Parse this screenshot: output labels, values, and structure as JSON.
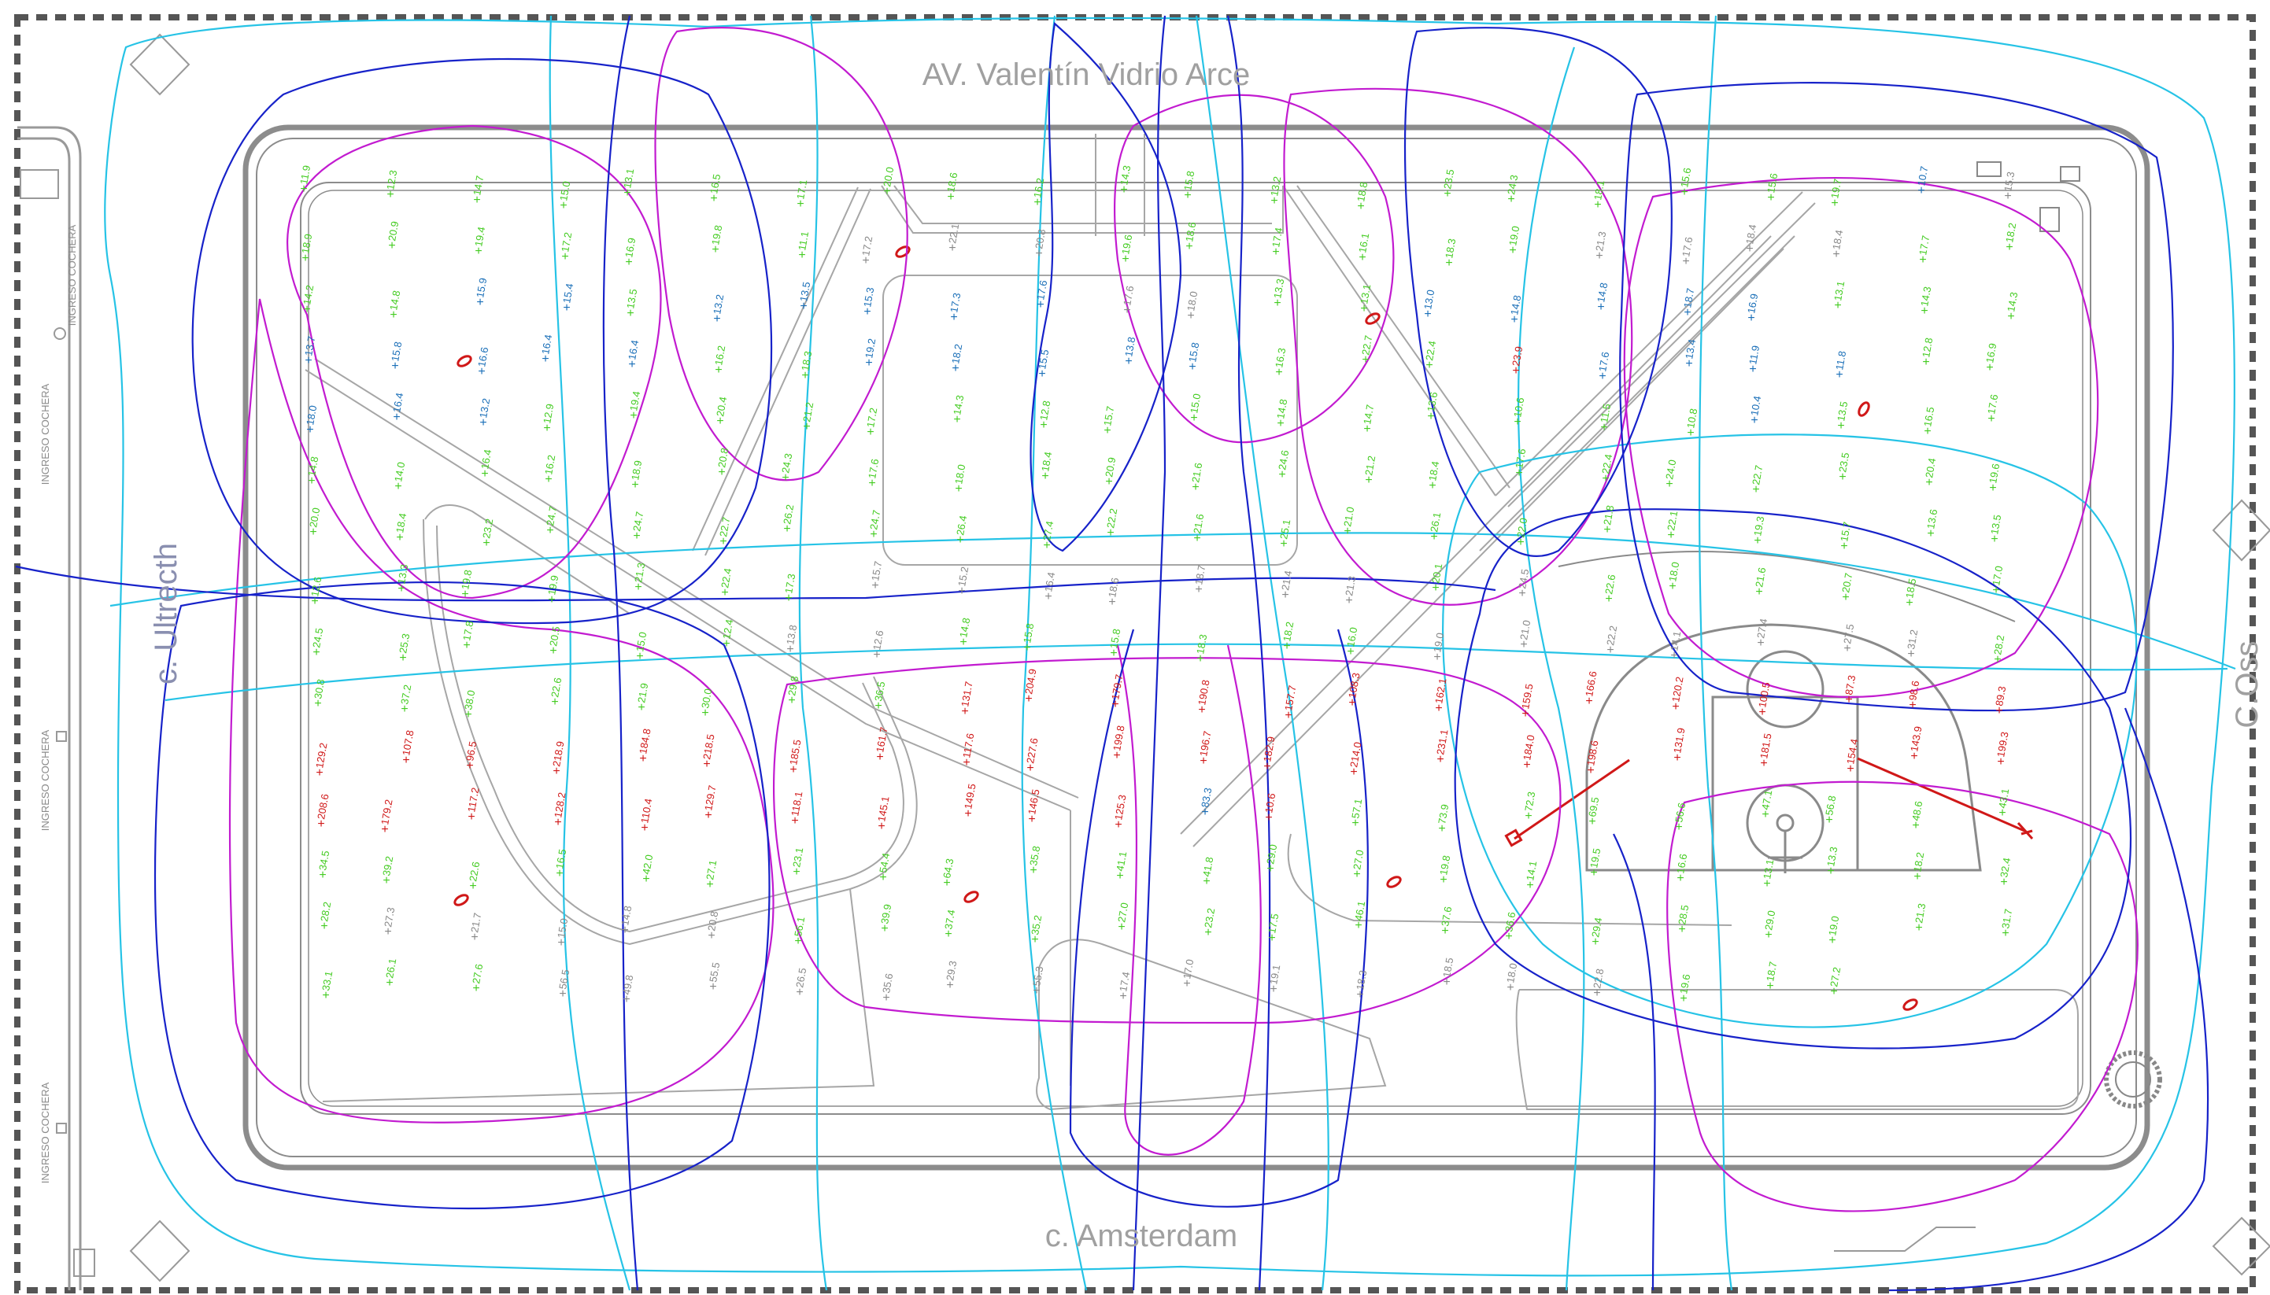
{
  "streets": {
    "north": "AV. Valentín Vidrio Arce",
    "south": "c. Amsterdam",
    "west": "c. Ultrecth",
    "east": "C.Oss"
  },
  "side_labels": [
    "INGRESO COCHERA",
    "INGRESO COCHERA",
    "INGRESO COCHERA",
    "INGRESO COCHERA"
  ],
  "colors": {
    "frame": "#555555",
    "plaza_outline": "#8c8c8c",
    "contour_magenta": "#c21bd0",
    "contour_cyan": "#26c3e6",
    "contour_blue": "#1722c9",
    "reading_green": "#44cc22",
    "reading_gray": "#888888",
    "reading_blue": "#1a6fb8",
    "reading_red": "#d01818"
  },
  "readings": [
    {
      "v": "11.9",
      "c": "green"
    },
    {
      "v": "12.3",
      "c": "green"
    },
    {
      "v": "14.7",
      "c": "green"
    },
    {
      "v": "15.0",
      "c": "green"
    },
    {
      "v": "13.1",
      "c": "green"
    },
    {
      "v": "16.5",
      "c": "green"
    },
    {
      "v": "17.1",
      "c": "green"
    },
    {
      "v": "20.0",
      "c": "green"
    },
    {
      "v": "18.6",
      "c": "green"
    },
    {
      "v": "16.2",
      "c": "green"
    },
    {
      "v": "14.3",
      "c": "green"
    },
    {
      "v": "15.8",
      "c": "green"
    },
    {
      "v": "13.2",
      "c": "green"
    },
    {
      "v": "18.8",
      "c": "green"
    },
    {
      "v": "23.5",
      "c": "green"
    },
    {
      "v": "24.3",
      "c": "green"
    },
    {
      "v": "18.1",
      "c": "green"
    },
    {
      "v": "15.6",
      "c": "green"
    },
    {
      "v": "15.6",
      "c": "green"
    },
    {
      "v": "19.7",
      "c": "green"
    },
    {
      "v": "10.7",
      "c": "blue"
    },
    {
      "v": "15.3",
      "c": "gray"
    },
    {
      "v": "18.9",
      "c": "green"
    },
    {
      "v": "20.9",
      "c": "green"
    },
    {
      "v": "19.4",
      "c": "green"
    },
    {
      "v": "17.2",
      "c": "green"
    },
    {
      "v": "16.9",
      "c": "green"
    },
    {
      "v": "19.8",
      "c": "green"
    },
    {
      "v": "11.1",
      "c": "green"
    },
    {
      "v": "17.2",
      "c": "gray"
    },
    {
      "v": "22.1",
      "c": "gray"
    },
    {
      "v": "20.8",
      "c": "gray"
    },
    {
      "v": "19.6",
      "c": "green"
    },
    {
      "v": "18.6",
      "c": "green"
    },
    {
      "v": "17.4",
      "c": "green"
    },
    {
      "v": "16.1",
      "c": "green"
    },
    {
      "v": "18.3",
      "c": "green"
    },
    {
      "v": "19.0",
      "c": "green"
    },
    {
      "v": "21.3",
      "c": "gray"
    },
    {
      "v": "17.6",
      "c": "gray"
    },
    {
      "v": "18.4",
      "c": "gray"
    },
    {
      "v": "18.4",
      "c": "gray"
    },
    {
      "v": "17.7",
      "c": "green"
    },
    {
      "v": "18.2",
      "c": "green"
    },
    {
      "v": "14.2",
      "c": "green"
    },
    {
      "v": "14.8",
      "c": "green"
    },
    {
      "v": "15.9",
      "c": "blue"
    },
    {
      "v": "15.4",
      "c": "blue"
    },
    {
      "v": "13.5",
      "c": "green"
    },
    {
      "v": "13.2",
      "c": "blue"
    },
    {
      "v": "13.5",
      "c": "blue"
    },
    {
      "v": "15.3",
      "c": "blue"
    },
    {
      "v": "17.3",
      "c": "blue"
    },
    {
      "v": "17.6",
      "c": "blue"
    },
    {
      "v": "17.6",
      "c": "gray"
    },
    {
      "v": "18.0",
      "c": "gray"
    },
    {
      "v": "13.3",
      "c": "green"
    },
    {
      "v": "13.1",
      "c": "green"
    },
    {
      "v": "13.0",
      "c": "blue"
    },
    {
      "v": "14.8",
      "c": "blue"
    },
    {
      "v": "14.8",
      "c": "blue"
    },
    {
      "v": "18.7",
      "c": "blue"
    },
    {
      "v": "16.9",
      "c": "blue"
    },
    {
      "v": "13.1",
      "c": "green"
    },
    {
      "v": "14.3",
      "c": "green"
    },
    {
      "v": "14.3",
      "c": "green"
    },
    {
      "v": "13.7",
      "c": "blue"
    },
    {
      "v": "15.8",
      "c": "blue"
    },
    {
      "v": "16.6",
      "c": "blue"
    },
    {
      "v": "16.4",
      "c": "blue"
    },
    {
      "v": "16.4",
      "c": "blue"
    },
    {
      "v": "16.2",
      "c": "green"
    },
    {
      "v": "18.3",
      "c": "green"
    },
    {
      "v": "19.2",
      "c": "blue"
    },
    {
      "v": "18.2",
      "c": "blue"
    },
    {
      "v": "15.5",
      "c": "blue"
    },
    {
      "v": "13.8",
      "c": "blue"
    },
    {
      "v": "15.8",
      "c": "blue"
    },
    {
      "v": "16.3",
      "c": "green"
    },
    {
      "v": "22.7",
      "c": "green"
    },
    {
      "v": "22.4",
      "c": "green"
    },
    {
      "v": "23.9",
      "c": "red"
    },
    {
      "v": "17.6",
      "c": "blue"
    },
    {
      "v": "13.4",
      "c": "blue"
    },
    {
      "v": "11.9",
      "c": "blue"
    },
    {
      "v": "11.8",
      "c": "blue"
    },
    {
      "v": "12.8",
      "c": "green"
    },
    {
      "v": "16.9",
      "c": "green"
    },
    {
      "v": "18.0",
      "c": "blue"
    },
    {
      "v": "16.4",
      "c": "blue"
    },
    {
      "v": "13.2",
      "c": "blue"
    },
    {
      "v": "12.9",
      "c": "green"
    },
    {
      "v": "19.4",
      "c": "green"
    },
    {
      "v": "20.4",
      "c": "green"
    },
    {
      "v": "21.2",
      "c": "green"
    },
    {
      "v": "17.2",
      "c": "green"
    },
    {
      "v": "14.3",
      "c": "green"
    },
    {
      "v": "12.8",
      "c": "green"
    },
    {
      "v": "15.7",
      "c": "green"
    },
    {
      "v": "15.0",
      "c": "green"
    },
    {
      "v": "14.8",
      "c": "green"
    },
    {
      "v": "14.7",
      "c": "green"
    },
    {
      "v": "13.6",
      "c": "green"
    },
    {
      "v": "10.6",
      "c": "green"
    },
    {
      "v": "11.5",
      "c": "green"
    },
    {
      "v": "10.8",
      "c": "green"
    },
    {
      "v": "10.4",
      "c": "blue"
    },
    {
      "v": "13.5",
      "c": "green"
    },
    {
      "v": "16.5",
      "c": "green"
    },
    {
      "v": "17.6",
      "c": "green"
    },
    {
      "v": "14.8",
      "c": "green"
    },
    {
      "v": "14.0",
      "c": "green"
    },
    {
      "v": "16.4",
      "c": "green"
    },
    {
      "v": "16.2",
      "c": "green"
    },
    {
      "v": "18.9",
      "c": "green"
    },
    {
      "v": "20.8",
      "c": "green"
    },
    {
      "v": "24.3",
      "c": "green"
    },
    {
      "v": "17.6",
      "c": "green"
    },
    {
      "v": "18.0",
      "c": "green"
    },
    {
      "v": "18.4",
      "c": "green"
    },
    {
      "v": "20.9",
      "c": "green"
    },
    {
      "v": "21.6",
      "c": "green"
    },
    {
      "v": "24.6",
      "c": "green"
    },
    {
      "v": "21.2",
      "c": "green"
    },
    {
      "v": "18.4",
      "c": "green"
    },
    {
      "v": "17.6",
      "c": "green"
    },
    {
      "v": "22.4",
      "c": "green"
    },
    {
      "v": "24.0",
      "c": "green"
    },
    {
      "v": "22.7",
      "c": "green"
    },
    {
      "v": "23.5",
      "c": "green"
    },
    {
      "v": "20.4",
      "c": "green"
    },
    {
      "v": "19.6",
      "c": "green"
    },
    {
      "v": "20.0",
      "c": "green"
    },
    {
      "v": "18.4",
      "c": "green"
    },
    {
      "v": "23.2",
      "c": "green"
    },
    {
      "v": "24.7",
      "c": "green"
    },
    {
      "v": "24.7",
      "c": "green"
    },
    {
      "v": "22.7",
      "c": "green"
    },
    {
      "v": "26.2",
      "c": "green"
    },
    {
      "v": "24.7",
      "c": "green"
    },
    {
      "v": "26.4",
      "c": "green"
    },
    {
      "v": "27.4",
      "c": "green"
    },
    {
      "v": "22.2",
      "c": "green"
    },
    {
      "v": "21.6",
      "c": "green"
    },
    {
      "v": "25.1",
      "c": "green"
    },
    {
      "v": "21.0",
      "c": "green"
    },
    {
      "v": "26.1",
      "c": "green"
    },
    {
      "v": "22.0",
      "c": "green"
    },
    {
      "v": "21.8",
      "c": "green"
    },
    {
      "v": "22.1",
      "c": "green"
    },
    {
      "v": "19.3",
      "c": "green"
    },
    {
      "v": "15.7",
      "c": "green"
    },
    {
      "v": "13.6",
      "c": "green"
    },
    {
      "v": "13.5",
      "c": "green"
    },
    {
      "v": "12.6",
      "c": "green"
    },
    {
      "v": "13.3",
      "c": "green"
    },
    {
      "v": "19.8",
      "c": "green"
    },
    {
      "v": "19.9",
      "c": "green"
    },
    {
      "v": "21.3",
      "c": "green"
    },
    {
      "v": "22.4",
      "c": "green"
    },
    {
      "v": "17.3",
      "c": "green"
    },
    {
      "v": "15.7",
      "c": "gray"
    },
    {
      "v": "15.2",
      "c": "gray"
    },
    {
      "v": "16.4",
      "c": "gray"
    },
    {
      "v": "18.6",
      "c": "gray"
    },
    {
      "v": "18.7",
      "c": "gray"
    },
    {
      "v": "21.4",
      "c": "gray"
    },
    {
      "v": "21.3",
      "c": "gray"
    },
    {
      "v": "20.1",
      "c": "green"
    },
    {
      "v": "24.5",
      "c": "gray"
    },
    {
      "v": "22.6",
      "c": "green"
    },
    {
      "v": "18.0",
      "c": "green"
    },
    {
      "v": "21.6",
      "c": "green"
    },
    {
      "v": "20.7",
      "c": "green"
    },
    {
      "v": "18.5",
      "c": "green"
    },
    {
      "v": "17.0",
      "c": "green"
    },
    {
      "v": "24.5",
      "c": "green"
    },
    {
      "v": "25.3",
      "c": "green"
    },
    {
      "v": "17.8",
      "c": "green"
    },
    {
      "v": "20.5",
      "c": "green"
    },
    {
      "v": "15.0",
      "c": "green"
    },
    {
      "v": "12.4",
      "c": "green"
    },
    {
      "v": "13.8",
      "c": "gray"
    },
    {
      "v": "12.6",
      "c": "gray"
    },
    {
      "v": "14.8",
      "c": "green"
    },
    {
      "v": "15.8",
      "c": "green"
    },
    {
      "v": "15.8",
      "c": "green"
    },
    {
      "v": "18.3",
      "c": "green"
    },
    {
      "v": "18.2",
      "c": "green"
    },
    {
      "v": "16.0",
      "c": "green"
    },
    {
      "v": "19.0",
      "c": "gray"
    },
    {
      "v": "21.0",
      "c": "gray"
    },
    {
      "v": "22.2",
      "c": "gray"
    },
    {
      "v": "14.1",
      "c": "gray"
    },
    {
      "v": "27.4",
      "c": "gray"
    },
    {
      "v": "27.5",
      "c": "gray"
    },
    {
      "v": "31.2",
      "c": "gray"
    },
    {
      "v": "28.2",
      "c": "green"
    },
    {
      "v": "30.8",
      "c": "green"
    },
    {
      "v": "37.2",
      "c": "green"
    },
    {
      "v": "38.0",
      "c": "green"
    },
    {
      "v": "22.6",
      "c": "green"
    },
    {
      "v": "21.9",
      "c": "green"
    },
    {
      "v": "30.0",
      "c": "green"
    },
    {
      "v": "29.8",
      "c": "green"
    },
    {
      "v": "36.5",
      "c": "green"
    },
    {
      "v": "131.7",
      "c": "red"
    },
    {
      "v": "204.9",
      "c": "red"
    },
    {
      "v": "179.7",
      "c": "red"
    },
    {
      "v": "190.8",
      "c": "red"
    },
    {
      "v": "157.7",
      "c": "red"
    },
    {
      "v": "108.3",
      "c": "red"
    },
    {
      "v": "162.1",
      "c": "red"
    },
    {
      "v": "159.5",
      "c": "red"
    },
    {
      "v": "166.6",
      "c": "red"
    },
    {
      "v": "120.2",
      "c": "red"
    },
    {
      "v": "100.5",
      "c": "red"
    },
    {
      "v": "87.3",
      "c": "red"
    },
    {
      "v": "98.6",
      "c": "red"
    },
    {
      "v": "89.3",
      "c": "red"
    },
    {
      "v": "129.2",
      "c": "red"
    },
    {
      "v": "107.8",
      "c": "red"
    },
    {
      "v": "96.5",
      "c": "red"
    },
    {
      "v": "218.9",
      "c": "red"
    },
    {
      "v": "184.8",
      "c": "red"
    },
    {
      "v": "218.5",
      "c": "red"
    },
    {
      "v": "185.5",
      "c": "red"
    },
    {
      "v": "161.7",
      "c": "red"
    },
    {
      "v": "117.6",
      "c": "red"
    },
    {
      "v": "227.6",
      "c": "red"
    },
    {
      "v": "199.8",
      "c": "red"
    },
    {
      "v": "196.7",
      "c": "red"
    },
    {
      "v": "182.9",
      "c": "red"
    },
    {
      "v": "214.0",
      "c": "red"
    },
    {
      "v": "231.1",
      "c": "red"
    },
    {
      "v": "184.0",
      "c": "red"
    },
    {
      "v": "198.6",
      "c": "red"
    },
    {
      "v": "131.9",
      "c": "red"
    },
    {
      "v": "181.5",
      "c": "red"
    },
    {
      "v": "154.4",
      "c": "red"
    },
    {
      "v": "143.9",
      "c": "red"
    },
    {
      "v": "199.3",
      "c": "red"
    },
    {
      "v": "208.6",
      "c": "red"
    },
    {
      "v": "179.2",
      "c": "red"
    },
    {
      "v": "117.2",
      "c": "red"
    },
    {
      "v": "128.2",
      "c": "red"
    },
    {
      "v": "110.4",
      "c": "red"
    },
    {
      "v": "129.7",
      "c": "red"
    },
    {
      "v": "118.1",
      "c": "red"
    },
    {
      "v": "145.1",
      "c": "red"
    },
    {
      "v": "149.5",
      "c": "red"
    },
    {
      "v": "146.5",
      "c": "red"
    },
    {
      "v": "125.3",
      "c": "red"
    },
    {
      "v": "83.3",
      "c": "blue"
    },
    {
      "v": "10.6",
      "c": "red"
    },
    {
      "v": "57.1",
      "c": "green"
    },
    {
      "v": "73.9",
      "c": "green"
    },
    {
      "v": "72.3",
      "c": "green"
    },
    {
      "v": "69.5",
      "c": "green"
    },
    {
      "v": "56.6",
      "c": "green"
    },
    {
      "v": "47.1",
      "c": "green"
    },
    {
      "v": "56.8",
      "c": "green"
    },
    {
      "v": "48.6",
      "c": "green"
    },
    {
      "v": "43.1",
      "c": "green"
    },
    {
      "v": "34.5",
      "c": "green"
    },
    {
      "v": "39.2",
      "c": "green"
    },
    {
      "v": "22.6",
      "c": "green"
    },
    {
      "v": "16.5",
      "c": "green"
    },
    {
      "v": "42.0",
      "c": "green"
    },
    {
      "v": "27.1",
      "c": "green"
    },
    {
      "v": "23.1",
      "c": "green"
    },
    {
      "v": "54.4",
      "c": "green"
    },
    {
      "v": "64.3",
      "c": "green"
    },
    {
      "v": "35.8",
      "c": "green"
    },
    {
      "v": "41.1",
      "c": "green"
    },
    {
      "v": "41.8",
      "c": "green"
    },
    {
      "v": "29.0",
      "c": "green"
    },
    {
      "v": "27.0",
      "c": "green"
    },
    {
      "v": "19.8",
      "c": "green"
    },
    {
      "v": "14.1",
      "c": "green"
    },
    {
      "v": "19.5",
      "c": "green"
    },
    {
      "v": "16.6",
      "c": "green"
    },
    {
      "v": "13.1",
      "c": "green"
    },
    {
      "v": "13.3",
      "c": "green"
    },
    {
      "v": "18.2",
      "c": "green"
    },
    {
      "v": "32.4",
      "c": "green"
    },
    {
      "v": "28.2",
      "c": "green"
    },
    {
      "v": "27.3",
      "c": "gray"
    },
    {
      "v": "21.7",
      "c": "gray"
    },
    {
      "v": "15.0",
      "c": "gray"
    },
    {
      "v": "14.8",
      "c": "gray"
    },
    {
      "v": "20.8",
      "c": "gray"
    },
    {
      "v": "56.1",
      "c": "green"
    },
    {
      "v": "39.9",
      "c": "green"
    },
    {
      "v": "37.4",
      "c": "green"
    },
    {
      "v": "35.2",
      "c": "green"
    },
    {
      "v": "27.0",
      "c": "green"
    },
    {
      "v": "23.2",
      "c": "green"
    },
    {
      "v": "17.5",
      "c": "green"
    },
    {
      "v": "46.1",
      "c": "green"
    },
    {
      "v": "37.6",
      "c": "green"
    },
    {
      "v": "36.6",
      "c": "green"
    },
    {
      "v": "29.4",
      "c": "green"
    },
    {
      "v": "28.5",
      "c": "green"
    },
    {
      "v": "29.0",
      "c": "green"
    },
    {
      "v": "19.0",
      "c": "green"
    },
    {
      "v": "21.3",
      "c": "green"
    },
    {
      "v": "31.7",
      "c": "green"
    },
    {
      "v": "33.1",
      "c": "green"
    },
    {
      "v": "26.1",
      "c": "green"
    },
    {
      "v": "27.6",
      "c": "green"
    },
    {
      "v": "56.5",
      "c": "gray"
    },
    {
      "v": "49.8",
      "c": "gray"
    },
    {
      "v": "55.5",
      "c": "gray"
    },
    {
      "v": "26.5",
      "c": "gray"
    },
    {
      "v": "35.6",
      "c": "gray"
    },
    {
      "v": "29.3",
      "c": "gray"
    },
    {
      "v": "55.3",
      "c": "gray"
    },
    {
      "v": "17.4",
      "c": "gray"
    },
    {
      "v": "17.0",
      "c": "gray"
    },
    {
      "v": "19.1",
      "c": "gray"
    },
    {
      "v": "18.3",
      "c": "gray"
    },
    {
      "v": "18.5",
      "c": "gray"
    },
    {
      "v": "18.0",
      "c": "gray"
    },
    {
      "v": "22.8",
      "c": "gray"
    },
    {
      "v": "19.6",
      "c": "green"
    },
    {
      "v": "18.7",
      "c": "green"
    },
    {
      "v": "27.2",
      "c": "green"
    }
  ]
}
